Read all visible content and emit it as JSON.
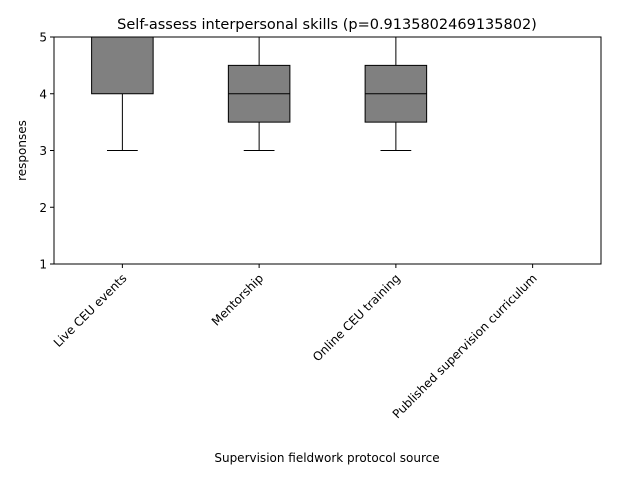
{
  "chart_data": {
    "type": "box",
    "title": "Self-assess interpersonal skills (p=0.9135802469135802)",
    "xlabel": "Supervision fieldwork protocol source",
    "ylabel": "responses",
    "ylim": [
      1,
      5
    ],
    "yticks": [
      1,
      2,
      3,
      4,
      5
    ],
    "categories": [
      "Live CEU events",
      "Mentorship",
      "Online CEU training",
      "Published supervision curriculum"
    ],
    "boxes": [
      {
        "whislo": 3,
        "q1": 4,
        "med": 5,
        "q3": 5,
        "whishi": 5
      },
      {
        "whislo": 3,
        "q1": 3.5,
        "med": 4,
        "q3": 4.5,
        "whishi": 5
      },
      {
        "whislo": 3,
        "q1": 3.5,
        "med": 4,
        "q3": 4.5,
        "whishi": 5
      },
      {
        "whislo": 5,
        "q1": 5,
        "med": 5,
        "q3": 5,
        "whishi": 5
      }
    ],
    "colors": {
      "box_fill": "#808080",
      "edge": "#000000"
    },
    "grid": false,
    "x_tick_rotation_deg": 45
  }
}
